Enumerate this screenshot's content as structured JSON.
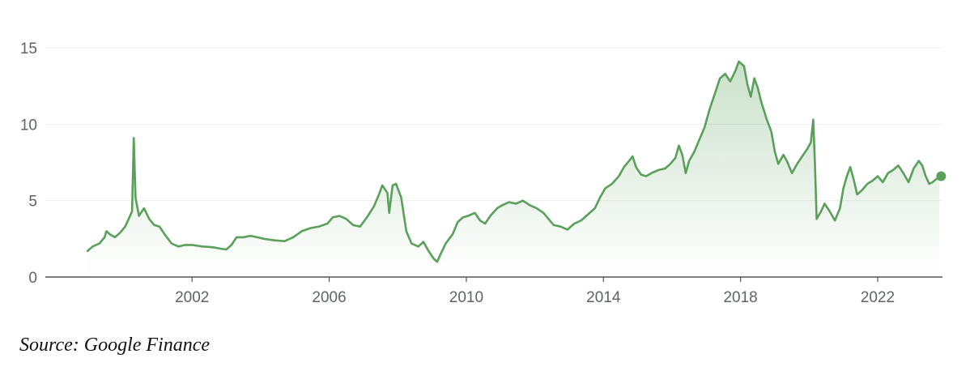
{
  "chart_data": {
    "type": "area",
    "title": "",
    "xlabel": "",
    "ylabel": "",
    "x_range": [
      1998.6,
      2023.5
    ],
    "ylim": [
      0,
      15
    ],
    "y_ticks": [
      "0",
      "5",
      "10",
      "15"
    ],
    "x_ticks": [
      "2002",
      "2006",
      "2010",
      "2014",
      "2018",
      "2022"
    ],
    "grid": "horizontal",
    "legend": "none",
    "colors": {
      "line": "#5aa05a",
      "fill": "#5aa05a",
      "grid": "#eeeeee",
      "axis": "#555555",
      "tick_text": "#5f6368"
    },
    "series": [
      {
        "points": [
          [
            1998.95,
            1.7
          ],
          [
            1999.1,
            2.0
          ],
          [
            1999.3,
            2.2
          ],
          [
            1999.45,
            2.6
          ],
          [
            1999.5,
            3.0
          ],
          [
            1999.6,
            2.8
          ],
          [
            1999.75,
            2.6
          ],
          [
            1999.9,
            2.9
          ],
          [
            2000.05,
            3.3
          ],
          [
            2000.15,
            3.8
          ],
          [
            2000.25,
            4.3
          ],
          [
            2000.3,
            9.1
          ],
          [
            2000.35,
            5.2
          ],
          [
            2000.45,
            4.0
          ],
          [
            2000.6,
            4.5
          ],
          [
            2000.75,
            3.8
          ],
          [
            2000.9,
            3.4
          ],
          [
            2001.05,
            3.3
          ],
          [
            2001.2,
            2.8
          ],
          [
            2001.4,
            2.2
          ],
          [
            2001.6,
            2.0
          ],
          [
            2001.8,
            2.1
          ],
          [
            2002.0,
            2.1
          ],
          [
            2002.3,
            2.0
          ],
          [
            2002.6,
            1.95
          ],
          [
            2002.85,
            1.85
          ],
          [
            2003.0,
            1.8
          ],
          [
            2003.15,
            2.1
          ],
          [
            2003.3,
            2.6
          ],
          [
            2003.5,
            2.6
          ],
          [
            2003.7,
            2.7
          ],
          [
            2003.9,
            2.6
          ],
          [
            2004.1,
            2.5
          ],
          [
            2004.4,
            2.4
          ],
          [
            2004.7,
            2.35
          ],
          [
            2004.95,
            2.6
          ],
          [
            2005.2,
            3.0
          ],
          [
            2005.45,
            3.2
          ],
          [
            2005.7,
            3.3
          ],
          [
            2005.95,
            3.5
          ],
          [
            2006.1,
            3.9
          ],
          [
            2006.3,
            4.0
          ],
          [
            2006.5,
            3.8
          ],
          [
            2006.7,
            3.4
          ],
          [
            2006.9,
            3.3
          ],
          [
            2007.1,
            3.9
          ],
          [
            2007.3,
            4.6
          ],
          [
            2007.45,
            5.4
          ],
          [
            2007.55,
            6.0
          ],
          [
            2007.7,
            5.5
          ],
          [
            2007.75,
            4.2
          ],
          [
            2007.85,
            6.0
          ],
          [
            2007.95,
            6.1
          ],
          [
            2008.1,
            5.2
          ],
          [
            2008.25,
            3.0
          ],
          [
            2008.4,
            2.2
          ],
          [
            2008.6,
            2.0
          ],
          [
            2008.75,
            2.3
          ],
          [
            2008.9,
            1.7
          ],
          [
            2009.05,
            1.2
          ],
          [
            2009.15,
            1.0
          ],
          [
            2009.25,
            1.5
          ],
          [
            2009.4,
            2.2
          ],
          [
            2009.6,
            2.8
          ],
          [
            2009.75,
            3.6
          ],
          [
            2009.9,
            3.9
          ],
          [
            2010.05,
            4.0
          ],
          [
            2010.25,
            4.2
          ],
          [
            2010.4,
            3.7
          ],
          [
            2010.55,
            3.5
          ],
          [
            2010.7,
            4.0
          ],
          [
            2010.9,
            4.5
          ],
          [
            2011.05,
            4.7
          ],
          [
            2011.25,
            4.9
          ],
          [
            2011.45,
            4.8
          ],
          [
            2011.65,
            5.0
          ],
          [
            2011.85,
            4.7
          ],
          [
            2012.05,
            4.5
          ],
          [
            2012.25,
            4.2
          ],
          [
            2012.4,
            3.8
          ],
          [
            2012.55,
            3.4
          ],
          [
            2012.75,
            3.3
          ],
          [
            2012.95,
            3.1
          ],
          [
            2013.15,
            3.5
          ],
          [
            2013.35,
            3.7
          ],
          [
            2013.55,
            4.1
          ],
          [
            2013.75,
            4.5
          ],
          [
            2013.9,
            5.2
          ],
          [
            2014.05,
            5.8
          ],
          [
            2014.25,
            6.1
          ],
          [
            2014.45,
            6.6
          ],
          [
            2014.6,
            7.2
          ],
          [
            2014.75,
            7.6
          ],
          [
            2014.85,
            7.9
          ],
          [
            2014.95,
            7.2
          ],
          [
            2015.1,
            6.7
          ],
          [
            2015.25,
            6.6
          ],
          [
            2015.4,
            6.8
          ],
          [
            2015.6,
            7.0
          ],
          [
            2015.8,
            7.1
          ],
          [
            2015.95,
            7.4
          ],
          [
            2016.1,
            7.8
          ],
          [
            2016.2,
            8.6
          ],
          [
            2016.3,
            8.0
          ],
          [
            2016.4,
            6.8
          ],
          [
            2016.5,
            7.6
          ],
          [
            2016.65,
            8.2
          ],
          [
            2016.8,
            9.0
          ],
          [
            2016.95,
            9.8
          ],
          [
            2017.1,
            11.0
          ],
          [
            2017.25,
            12.0
          ],
          [
            2017.4,
            13.0
          ],
          [
            2017.55,
            13.3
          ],
          [
            2017.7,
            12.8
          ],
          [
            2017.85,
            13.5
          ],
          [
            2017.95,
            14.1
          ],
          [
            2018.1,
            13.8
          ],
          [
            2018.2,
            12.6
          ],
          [
            2018.3,
            11.8
          ],
          [
            2018.4,
            13.0
          ],
          [
            2018.5,
            12.4
          ],
          [
            2018.6,
            11.5
          ],
          [
            2018.75,
            10.4
          ],
          [
            2018.9,
            9.5
          ],
          [
            2019.0,
            8.2
          ],
          [
            2019.1,
            7.4
          ],
          [
            2019.25,
            8.0
          ],
          [
            2019.35,
            7.6
          ],
          [
            2019.5,
            6.8
          ],
          [
            2019.65,
            7.4
          ],
          [
            2019.8,
            7.9
          ],
          [
            2019.95,
            8.4
          ],
          [
            2020.05,
            8.8
          ],
          [
            2020.12,
            10.3
          ],
          [
            2020.17,
            7.4
          ],
          [
            2020.22,
            3.8
          ],
          [
            2020.35,
            4.3
          ],
          [
            2020.45,
            4.8
          ],
          [
            2020.6,
            4.3
          ],
          [
            2020.75,
            3.7
          ],
          [
            2020.9,
            4.5
          ],
          [
            2021.0,
            5.8
          ],
          [
            2021.1,
            6.6
          ],
          [
            2021.2,
            7.2
          ],
          [
            2021.3,
            6.4
          ],
          [
            2021.4,
            5.4
          ],
          [
            2021.55,
            5.7
          ],
          [
            2021.7,
            6.1
          ],
          [
            2021.85,
            6.3
          ],
          [
            2022.0,
            6.6
          ],
          [
            2022.15,
            6.2
          ],
          [
            2022.3,
            6.8
          ],
          [
            2022.45,
            7.0
          ],
          [
            2022.6,
            7.3
          ],
          [
            2022.75,
            6.8
          ],
          [
            2022.9,
            6.2
          ],
          [
            2023.05,
            7.1
          ],
          [
            2023.2,
            7.6
          ],
          [
            2023.3,
            7.3
          ],
          [
            2023.4,
            6.6
          ],
          [
            2023.5,
            6.1
          ],
          [
            2023.6,
            6.2
          ],
          [
            2023.7,
            6.4
          ],
          [
            2023.8,
            6.5
          ]
        ],
        "last_point": [
          2023.85,
          6.6
        ]
      }
    ]
  },
  "footer": {
    "source": "Source: Google Finance"
  }
}
